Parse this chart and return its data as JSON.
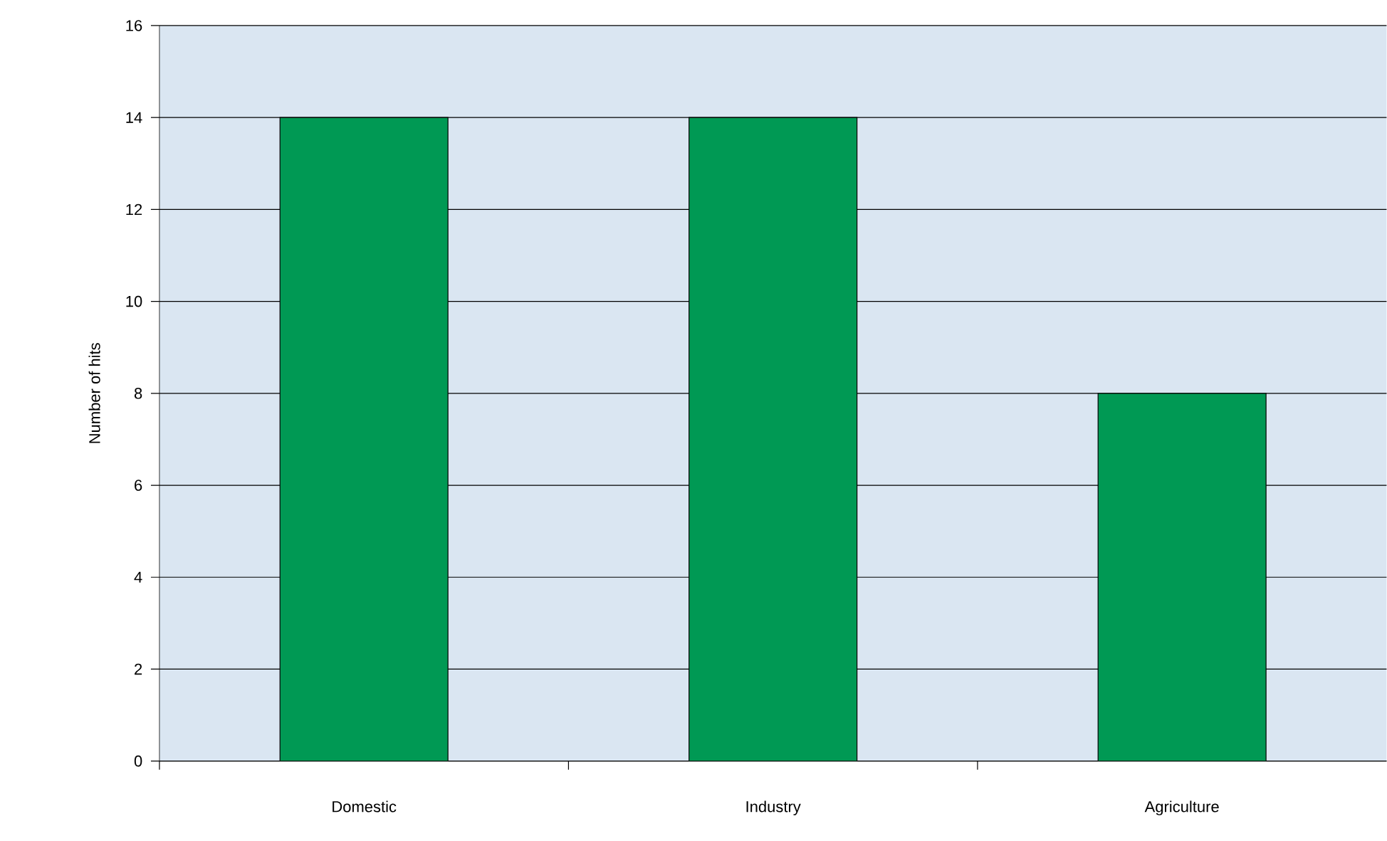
{
  "chart_data": {
    "type": "bar",
    "ylabel": "Number of hits",
    "categories": [
      "Domestic",
      "Industry",
      "Agriculture"
    ],
    "values": [
      14,
      14,
      8
    ],
    "color": "#009954",
    "ylim": [
      0,
      16
    ],
    "yticks": [
      0,
      2,
      4,
      6,
      8,
      10,
      12,
      14,
      16
    ],
    "grid": "y"
  }
}
